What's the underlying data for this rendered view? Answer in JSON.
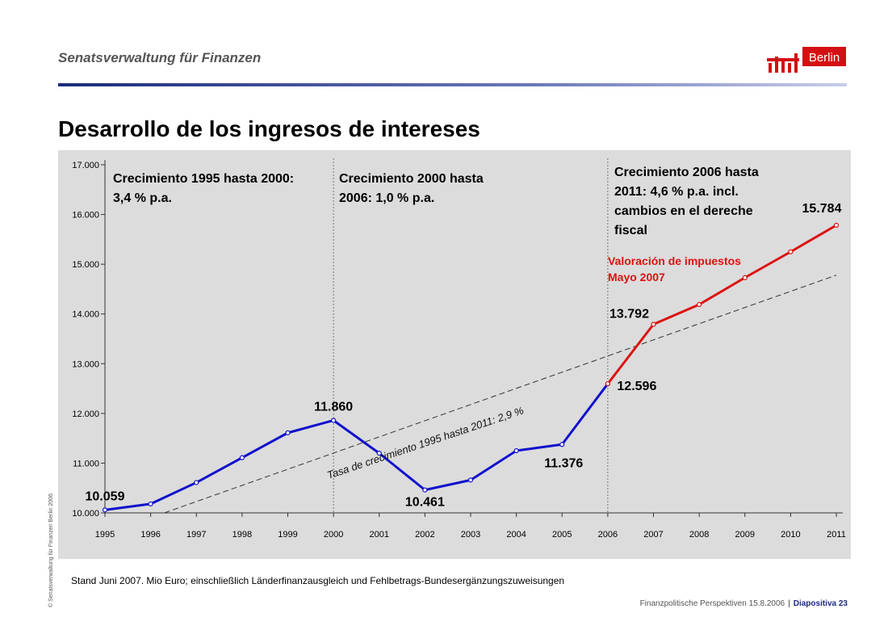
{
  "header": {
    "title": "Senatsverwaltung für Finanzen",
    "logo_text": "Berlin"
  },
  "page_title": "Desarrollo de los ingresos de intereses",
  "side_copyright": "© Senatsverwaltung für Finanzen Berlin 2006",
  "footnote": "Stand Juni 2007. Mio Euro; einschließlich Länderfinanzausgleich und Fehlbetrags-Bundesergänzungszuweisungen",
  "footer": {
    "presentation": "Finanzpolitische Perspektiven 15.8.2006",
    "separator": "|",
    "slide": "Diapositiva 23"
  },
  "colors": {
    "actual": "#1010cc",
    "forecast": "#dd1111",
    "trend": "#333333",
    "annotation_red": "#dd1111",
    "panel": "#dcdcdc"
  },
  "chart_data": {
    "type": "line",
    "x": [
      1995,
      1996,
      1997,
      1998,
      1999,
      2000,
      2001,
      2002,
      2003,
      2004,
      2005,
      2006,
      2007,
      2008,
      2009,
      2010,
      2011
    ],
    "ylim": [
      10000,
      17000
    ],
    "yticks": [
      10000,
      11000,
      12000,
      13000,
      14000,
      15000,
      16000,
      17000
    ],
    "ytick_labels": [
      "10.000",
      "11.000",
      "12.000",
      "13.000",
      "14.000",
      "15.000",
      "16.000",
      "17.000"
    ],
    "xtick_labels": [
      "1995",
      "1996",
      "1997",
      "1998",
      "1999",
      "2000",
      "2001",
      "2002",
      "2003",
      "2004",
      "2005",
      "2006",
      "2007",
      "2008",
      "2009",
      "2010",
      "2011"
    ],
    "series": [
      {
        "x": [
          1995,
          1996,
          1997,
          1998,
          1999,
          2000,
          2001,
          2002,
          2003,
          2004,
          2005,
          2006
        ],
        "values": [
          10059,
          10180,
          10610,
          11110,
          11610,
          11860,
          11200,
          10461,
          10660,
          11250,
          11376,
          12596
        ]
      },
      {
        "x": [
          2006,
          2007,
          2008,
          2009,
          2010,
          2011
        ],
        "values": [
          12596,
          13792,
          14190,
          14730,
          15250,
          15784
        ]
      },
      {
        "x": [
          1996.3,
          2011
        ],
        "values": [
          10000,
          14780
        ]
      }
    ],
    "data_labels": [
      {
        "x": 1995,
        "y": 10059,
        "text": "10.059"
      },
      {
        "x": 2000,
        "y": 11860,
        "text": "11.860"
      },
      {
        "x": 2002,
        "y": 10461,
        "text": "10.461"
      },
      {
        "x": 2005,
        "y": 11376,
        "text": "11.376"
      },
      {
        "x": 2006,
        "y": 12596,
        "text": "12.596"
      },
      {
        "x": 2007,
        "y": 13792,
        "text": "13.792"
      },
      {
        "x": 2011,
        "y": 15784,
        "text": "15.784"
      }
    ],
    "dividers": [
      2000,
      2006
    ],
    "annotations": {
      "period1": [
        "Crecimiento 1995 hasta 2000:",
        "3,4 % p.a."
      ],
      "period2": [
        "Crecimiento 2000 hasta",
        "2006: 1,0 % p.a."
      ],
      "period3": [
        "Crecimiento 2006 hasta",
        "2011: 4,6 % p.a. incl.",
        "cambios en el dereche",
        "fiscal"
      ],
      "valuation": [
        "Valoración de impuestos",
        "Mayo 2007"
      ],
      "trend_label": "Tasa de crecimiento  1995 hasta 2011: 2,9 %"
    }
  }
}
